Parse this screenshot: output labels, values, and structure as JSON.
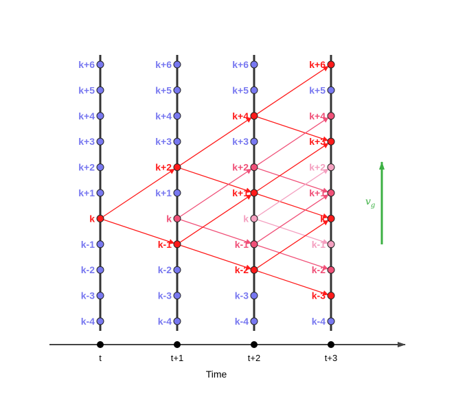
{
  "diagram": {
    "axis_title": "Time",
    "time_labels": [
      "t",
      "t+1",
      "t+2",
      "t+3"
    ],
    "level_labels": [
      "k+6",
      "k+5",
      "k+4",
      "k+3",
      "k+2",
      "k+1",
      "k",
      "k-1",
      "k-2",
      "k-3",
      "k-4"
    ],
    "velocity_label": "v",
    "velocity_subscript": "g",
    "colors": {
      "blue": "#7878f0",
      "red": "#ff1a1a",
      "pink": "#f05078",
      "light_pink": "#f4a0c0",
      "line": "#333333",
      "green": "#3cb043"
    },
    "node_states": [
      [
        "blue",
        "blue",
        "blue",
        "blue",
        "blue",
        "blue",
        "red",
        "blue",
        "blue",
        "blue",
        "blue"
      ],
      [
        "blue",
        "blue",
        "blue",
        "blue",
        "red",
        "blue",
        "pink",
        "red",
        "blue",
        "blue",
        "blue"
      ],
      [
        "blue",
        "blue",
        "red",
        "blue",
        "pink",
        "red",
        "light_pink",
        "pink",
        "red",
        "blue",
        "blue"
      ],
      [
        "red",
        "blue",
        "pink",
        "red",
        "light_pink",
        "pink",
        "red",
        "light_pink",
        "pink",
        "red",
        "blue"
      ]
    ],
    "arrows": [
      {
        "from": [
          0,
          "k"
        ],
        "to": [
          1,
          "k+2"
        ],
        "tone": "red"
      },
      {
        "from": [
          0,
          "k"
        ],
        "to": [
          1,
          "k-1"
        ],
        "tone": "red"
      },
      {
        "from": [
          1,
          "k+2"
        ],
        "to": [
          2,
          "k+4"
        ],
        "tone": "red"
      },
      {
        "from": [
          1,
          "k+2"
        ],
        "to": [
          2,
          "k+1"
        ],
        "tone": "red"
      },
      {
        "from": [
          1,
          "k"
        ],
        "to": [
          2,
          "k+2"
        ],
        "tone": "pink"
      },
      {
        "from": [
          1,
          "k"
        ],
        "to": [
          2,
          "k-1"
        ],
        "tone": "pink"
      },
      {
        "from": [
          1,
          "k-1"
        ],
        "to": [
          2,
          "k+1"
        ],
        "tone": "red"
      },
      {
        "from": [
          1,
          "k-1"
        ],
        "to": [
          2,
          "k-2"
        ],
        "tone": "red"
      },
      {
        "from": [
          2,
          "k+4"
        ],
        "to": [
          3,
          "k+6"
        ],
        "tone": "red"
      },
      {
        "from": [
          2,
          "k+4"
        ],
        "to": [
          3,
          "k+3"
        ],
        "tone": "red"
      },
      {
        "from": [
          2,
          "k+2"
        ],
        "to": [
          3,
          "k+4"
        ],
        "tone": "pink"
      },
      {
        "from": [
          2,
          "k+2"
        ],
        "to": [
          3,
          "k+1"
        ],
        "tone": "pink"
      },
      {
        "from": [
          2,
          "k+1"
        ],
        "to": [
          3,
          "k+3"
        ],
        "tone": "red"
      },
      {
        "from": [
          2,
          "k+1"
        ],
        "to": [
          3,
          "k"
        ],
        "tone": "red"
      },
      {
        "from": [
          2,
          "k"
        ],
        "to": [
          3,
          "k+2"
        ],
        "tone": "light_pink"
      },
      {
        "from": [
          2,
          "k"
        ],
        "to": [
          3,
          "k-1"
        ],
        "tone": "light_pink"
      },
      {
        "from": [
          2,
          "k-1"
        ],
        "to": [
          3,
          "k+1"
        ],
        "tone": "pink"
      },
      {
        "from": [
          2,
          "k-1"
        ],
        "to": [
          3,
          "k-2"
        ],
        "tone": "pink"
      },
      {
        "from": [
          2,
          "k-2"
        ],
        "to": [
          3,
          "k"
        ],
        "tone": "red"
      },
      {
        "from": [
          2,
          "k-2"
        ],
        "to": [
          3,
          "k-3"
        ],
        "tone": "red"
      }
    ]
  }
}
